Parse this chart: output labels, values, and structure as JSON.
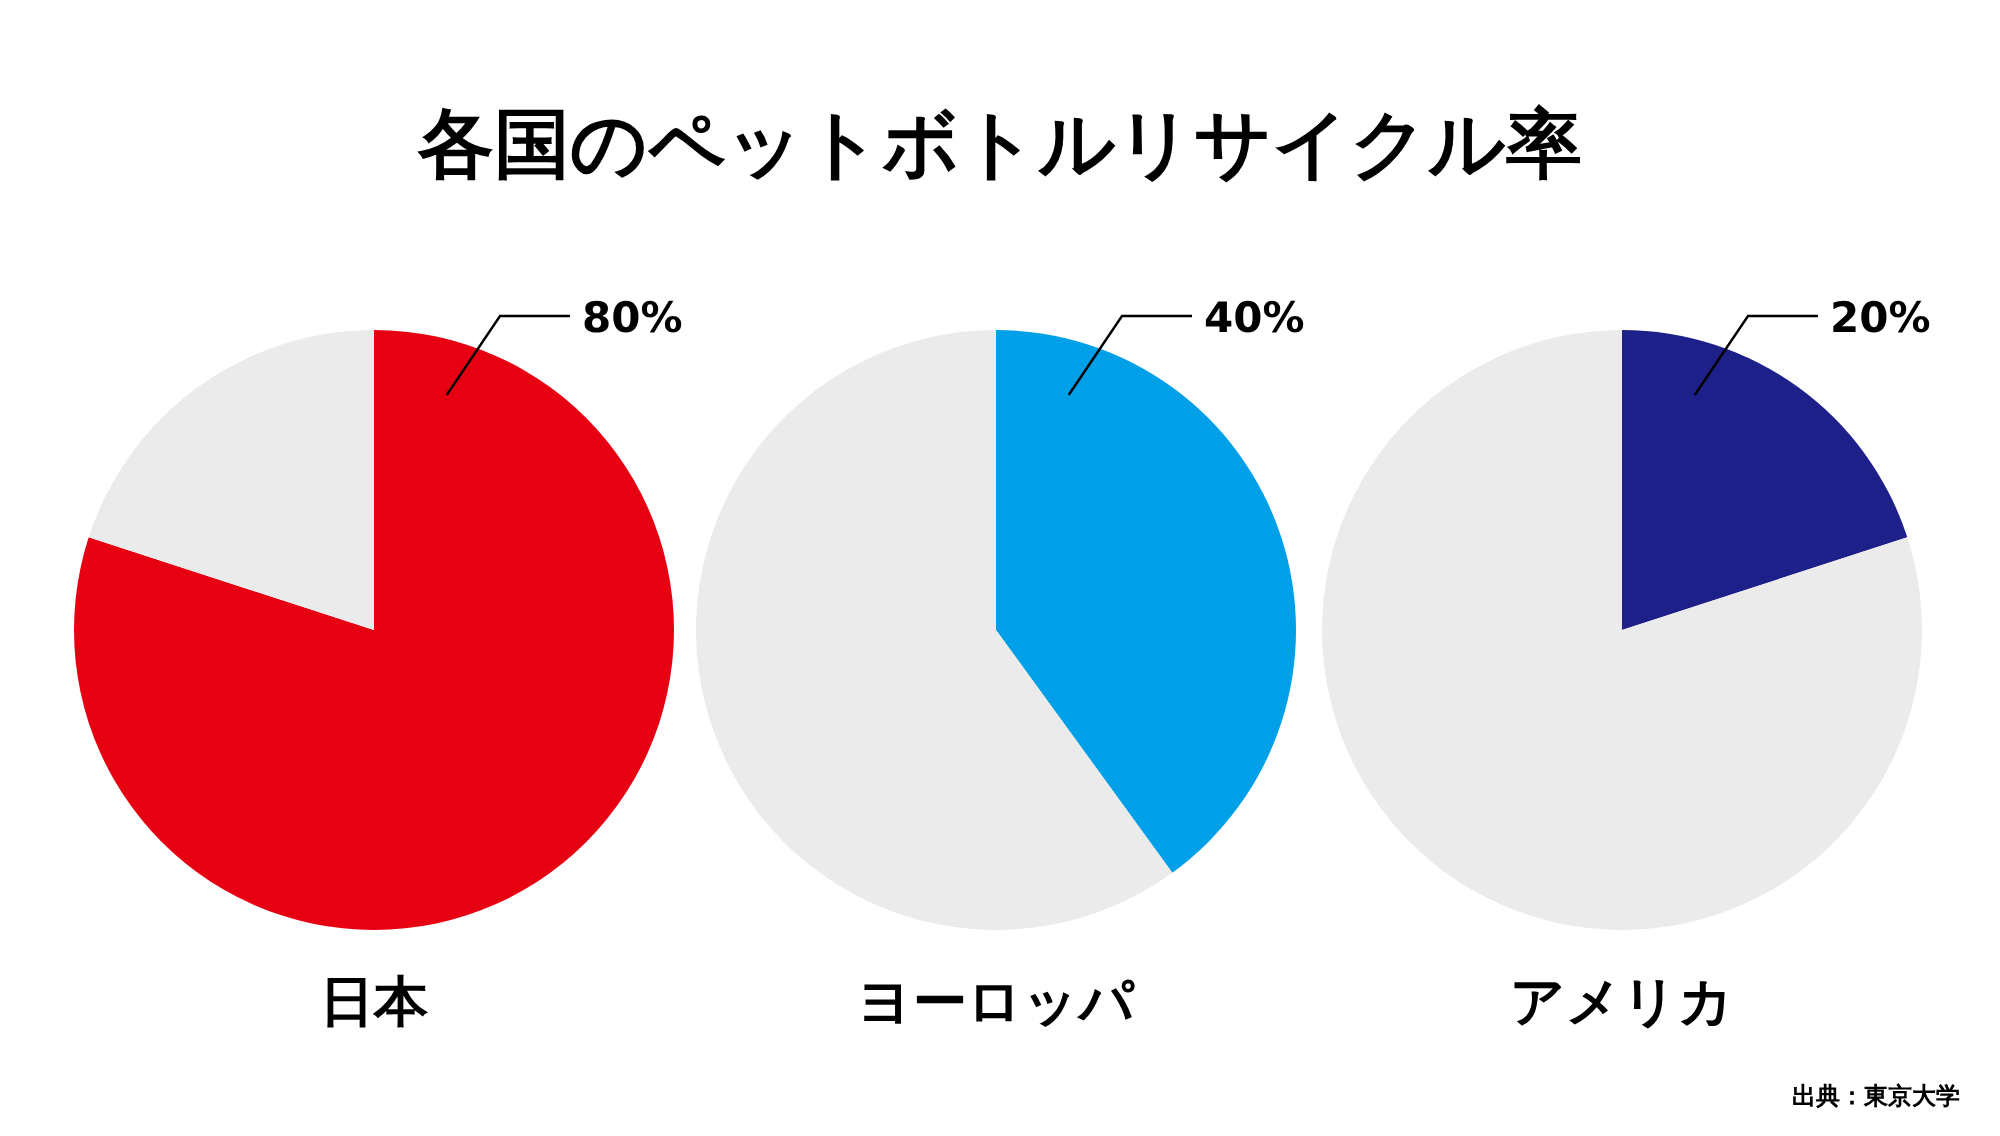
{
  "chart_data": [
    {
      "type": "pie",
      "title": "各国のペットボトルリサイクル率",
      "xlabel": "日本",
      "categories": [
        null,
        null
      ],
      "values": [
        80,
        20
      ],
      "colors": [
        "#e60012",
        "#ebebeb"
      ],
      "value_labels": [
        "80%",
        null
      ]
    },
    {
      "type": "pie",
      "xlabel": "ヨーロッパ",
      "categories": [
        null,
        null
      ],
      "values": [
        40,
        60
      ],
      "colors": [
        "#00a0e9",
        "#ebebeb"
      ],
      "value_labels": [
        "40%",
        null
      ]
    },
    {
      "type": "pie",
      "xlabel": "アメリカ",
      "categories": [
        null,
        null
      ],
      "values": [
        20,
        80
      ],
      "colors": [
        "#1d2088",
        "#ebebeb"
      ],
      "value_labels": [
        "20%",
        null
      ],
      "annotations": [
        "出典：東京大学"
      ]
    }
  ]
}
